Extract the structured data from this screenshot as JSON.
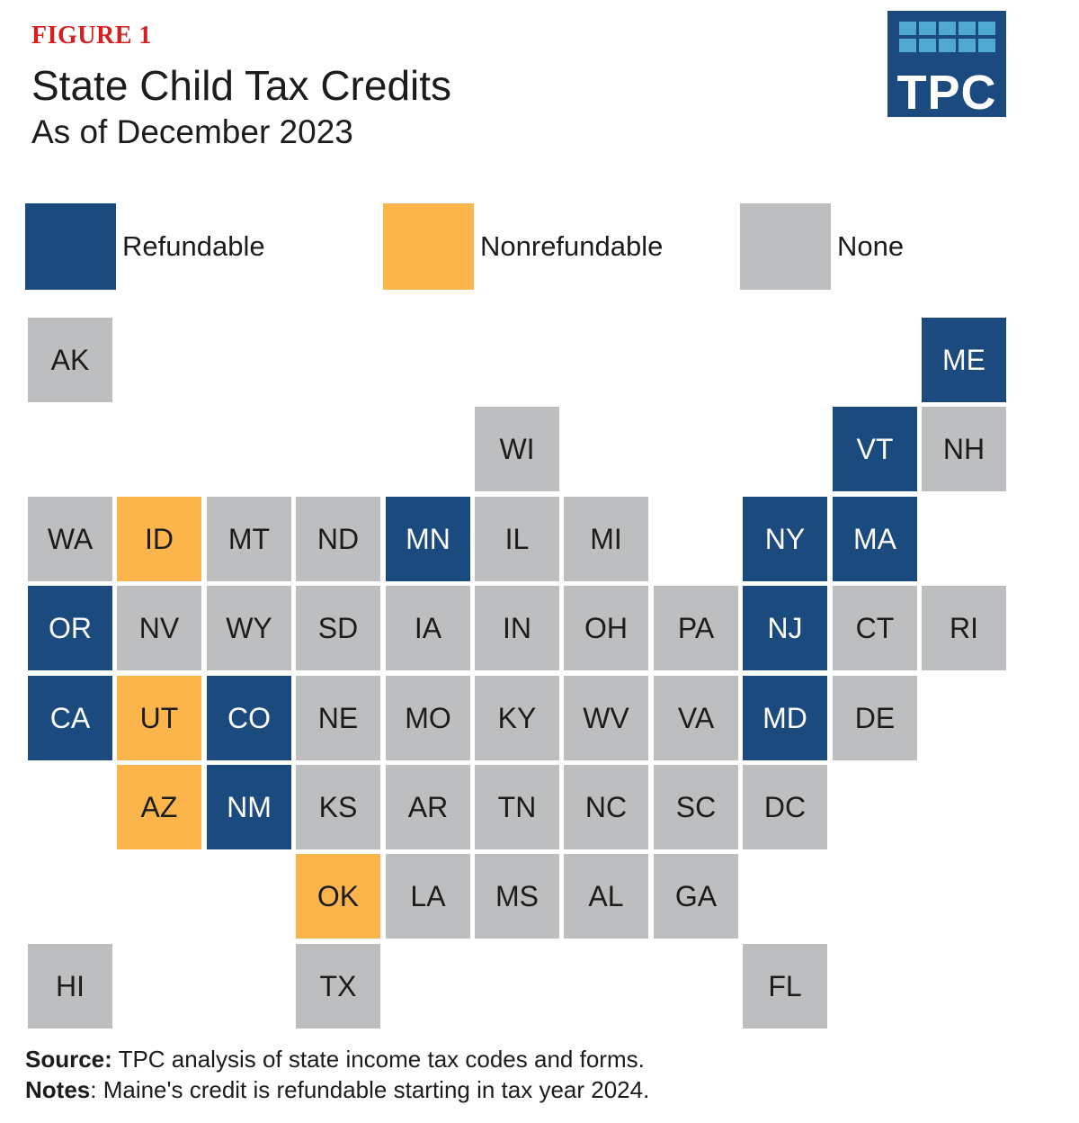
{
  "header": {
    "figure_label": "FIGURE 1",
    "title": "State Child Tax Credits",
    "subtitle": "As of December 2023"
  },
  "logo": {
    "text": "TPC"
  },
  "colors": {
    "refundable": "#1b4a7f",
    "nonrefundable": "#fbb54b",
    "none": "#bcbec0",
    "light_text": "#ffffff",
    "dark_text": "#1c1c1c"
  },
  "legend": [
    {
      "key": "refundable",
      "label": "Refundable"
    },
    {
      "key": "nonrefundable",
      "label": "Nonrefundable"
    },
    {
      "key": "none",
      "label": "None"
    }
  ],
  "map_data": {
    "type": "tile-grid",
    "states": [
      {
        "abbr": "AK",
        "row": 0,
        "col": 0,
        "status": "none"
      },
      {
        "abbr": "ME",
        "row": 0,
        "col": 10,
        "status": "refundable"
      },
      {
        "abbr": "WI",
        "row": 1,
        "col": 5,
        "status": "none"
      },
      {
        "abbr": "VT",
        "row": 1,
        "col": 9,
        "status": "refundable"
      },
      {
        "abbr": "NH",
        "row": 1,
        "col": 10,
        "status": "none"
      },
      {
        "abbr": "WA",
        "row": 2,
        "col": 0,
        "status": "none"
      },
      {
        "abbr": "ID",
        "row": 2,
        "col": 1,
        "status": "nonrefundable"
      },
      {
        "abbr": "MT",
        "row": 2,
        "col": 2,
        "status": "none"
      },
      {
        "abbr": "ND",
        "row": 2,
        "col": 3,
        "status": "none"
      },
      {
        "abbr": "MN",
        "row": 2,
        "col": 4,
        "status": "refundable"
      },
      {
        "abbr": "IL",
        "row": 2,
        "col": 5,
        "status": "none"
      },
      {
        "abbr": "MI",
        "row": 2,
        "col": 6,
        "status": "none"
      },
      {
        "abbr": "NY",
        "row": 2,
        "col": 8,
        "status": "refundable"
      },
      {
        "abbr": "MA",
        "row": 2,
        "col": 9,
        "status": "refundable"
      },
      {
        "abbr": "OR",
        "row": 3,
        "col": 0,
        "status": "refundable"
      },
      {
        "abbr": "NV",
        "row": 3,
        "col": 1,
        "status": "none"
      },
      {
        "abbr": "WY",
        "row": 3,
        "col": 2,
        "status": "none"
      },
      {
        "abbr": "SD",
        "row": 3,
        "col": 3,
        "status": "none"
      },
      {
        "abbr": "IA",
        "row": 3,
        "col": 4,
        "status": "none"
      },
      {
        "abbr": "IN",
        "row": 3,
        "col": 5,
        "status": "none"
      },
      {
        "abbr": "OH",
        "row": 3,
        "col": 6,
        "status": "none"
      },
      {
        "abbr": "PA",
        "row": 3,
        "col": 7,
        "status": "none"
      },
      {
        "abbr": "NJ",
        "row": 3,
        "col": 8,
        "status": "refundable"
      },
      {
        "abbr": "CT",
        "row": 3,
        "col": 9,
        "status": "none"
      },
      {
        "abbr": "RI",
        "row": 3,
        "col": 10,
        "status": "none"
      },
      {
        "abbr": "CA",
        "row": 4,
        "col": 0,
        "status": "refundable"
      },
      {
        "abbr": "UT",
        "row": 4,
        "col": 1,
        "status": "nonrefundable"
      },
      {
        "abbr": "CO",
        "row": 4,
        "col": 2,
        "status": "refundable"
      },
      {
        "abbr": "NE",
        "row": 4,
        "col": 3,
        "status": "none"
      },
      {
        "abbr": "MO",
        "row": 4,
        "col": 4,
        "status": "none"
      },
      {
        "abbr": "KY",
        "row": 4,
        "col": 5,
        "status": "none"
      },
      {
        "abbr": "WV",
        "row": 4,
        "col": 6,
        "status": "none"
      },
      {
        "abbr": "VA",
        "row": 4,
        "col": 7,
        "status": "none"
      },
      {
        "abbr": "MD",
        "row": 4,
        "col": 8,
        "status": "refundable"
      },
      {
        "abbr": "DE",
        "row": 4,
        "col": 9,
        "status": "none"
      },
      {
        "abbr": "AZ",
        "row": 5,
        "col": 1,
        "status": "nonrefundable"
      },
      {
        "abbr": "NM",
        "row": 5,
        "col": 2,
        "status": "refundable"
      },
      {
        "abbr": "KS",
        "row": 5,
        "col": 3,
        "status": "none"
      },
      {
        "abbr": "AR",
        "row": 5,
        "col": 4,
        "status": "none"
      },
      {
        "abbr": "TN",
        "row": 5,
        "col": 5,
        "status": "none"
      },
      {
        "abbr": "NC",
        "row": 5,
        "col": 6,
        "status": "none"
      },
      {
        "abbr": "SC",
        "row": 5,
        "col": 7,
        "status": "none"
      },
      {
        "abbr": "DC",
        "row": 5,
        "col": 8,
        "status": "none"
      },
      {
        "abbr": "OK",
        "row": 6,
        "col": 3,
        "status": "nonrefundable"
      },
      {
        "abbr": "LA",
        "row": 6,
        "col": 4,
        "status": "none"
      },
      {
        "abbr": "MS",
        "row": 6,
        "col": 5,
        "status": "none"
      },
      {
        "abbr": "AL",
        "row": 6,
        "col": 6,
        "status": "none"
      },
      {
        "abbr": "GA",
        "row": 6,
        "col": 7,
        "status": "none"
      },
      {
        "abbr": "HI",
        "row": 7,
        "col": 0,
        "status": "none"
      },
      {
        "abbr": "TX",
        "row": 7,
        "col": 3,
        "status": "none"
      },
      {
        "abbr": "FL",
        "row": 7,
        "col": 8,
        "status": "none"
      }
    ]
  },
  "footer": {
    "source_label": "Source:",
    "source_text": " TPC analysis of state income tax codes and forms.",
    "notes_label": "Notes",
    "notes_text": ": Maine's credit is refundable starting in tax year 2024."
  }
}
